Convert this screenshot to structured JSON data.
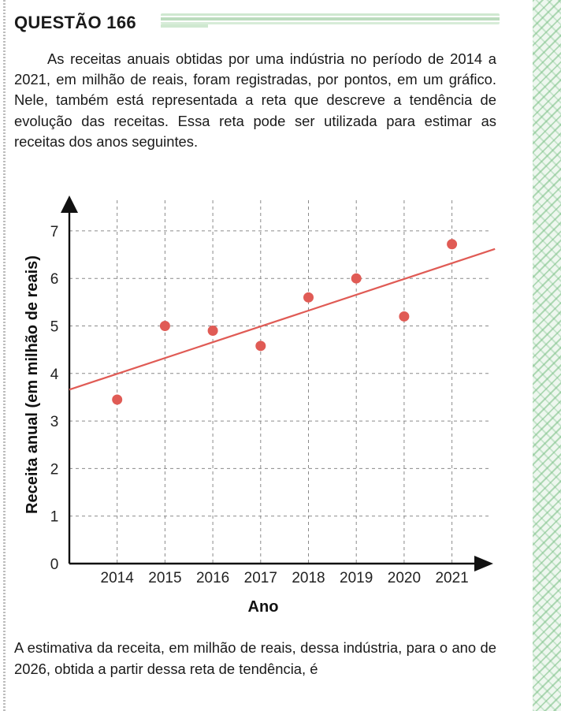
{
  "header": {
    "title": "QUESTÃO 166"
  },
  "stem": "As receitas anuais obtidas por uma indústria no período de 2014 a 2021, em milhão de reais, foram registradas, por pontos, em um gráfico. Nele, também está representada a reta que descreve a tendência de evolução das receitas. Essa reta pode ser utilizada para estimar as receitas dos anos seguintes.",
  "question": "A estimativa da receita, em milhão de reais, dessa indústria, para o ano de 2026, obtida a partir dessa reta de tendência, é",
  "colors": {
    "points": "#e05b55",
    "trend_line": "#e05b55",
    "axes": "#111111",
    "grid": "#8a8a8a",
    "border_accent": "#bcdcbe"
  },
  "chart_data": {
    "type": "scatter",
    "title": "",
    "xlabel": "Ano",
    "ylabel": "Receita anual (em milhão de reais)",
    "x": [
      2014,
      2015,
      2016,
      2017,
      2018,
      2019,
      2020,
      2021
    ],
    "y": [
      3.45,
      5.0,
      4.9,
      4.58,
      5.6,
      6.0,
      5.2,
      6.72
    ],
    "xticks": [
      "2014",
      "2015",
      "2016",
      "2017",
      "2018",
      "2019",
      "2020",
      "2021"
    ],
    "yticks": [
      "0",
      "1",
      "2",
      "3",
      "4",
      "5",
      "6",
      "7"
    ],
    "xlim": [
      2013,
      2021.9
    ],
    "ylim": [
      0,
      7.6
    ],
    "grid": true,
    "trend_line": {
      "x": [
        2013,
        2021.9
      ],
      "y": [
        3.66,
        6.62
      ]
    }
  }
}
